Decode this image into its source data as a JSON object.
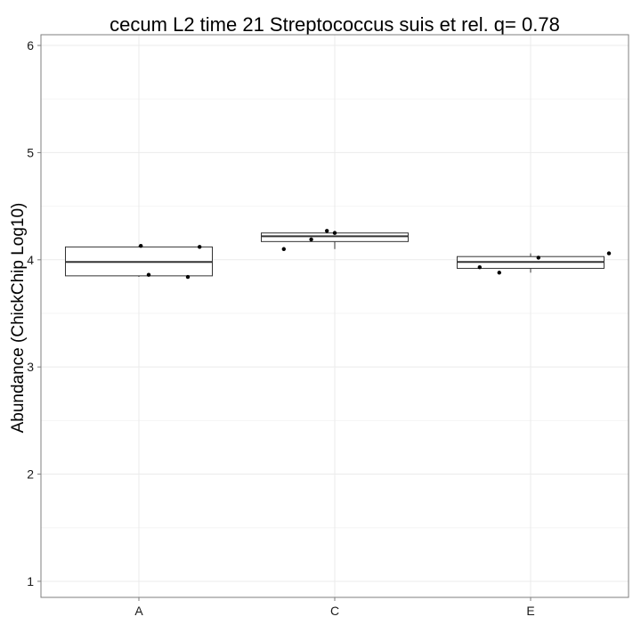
{
  "chart_data": {
    "type": "box",
    "title": "cecum L2 time 21 Streptococcus suis et rel. q= 0.78",
    "xlabel": "",
    "ylabel": "Abundance (ChickChip Log10)",
    "categories": [
      "A",
      "C",
      "E"
    ],
    "ylim": [
      0.85,
      6.1
    ],
    "yticks": [
      1,
      2,
      3,
      4,
      5,
      6
    ],
    "grid": true,
    "legend": "none",
    "boxes": [
      {
        "category": "A",
        "whisker_low": 3.84,
        "q1": 3.85,
        "median": 3.98,
        "q3": 4.12,
        "whisker_high": 4.13
      },
      {
        "category": "C",
        "whisker_low": 4.1,
        "q1": 4.17,
        "median": 4.22,
        "q3": 4.25,
        "whisker_high": 4.27
      },
      {
        "category": "E",
        "whisker_low": 3.88,
        "q1": 3.92,
        "median": 3.98,
        "q3": 4.03,
        "whisker_high": 4.06
      }
    ],
    "points": [
      {
        "category": "A",
        "jitter": 0.01,
        "y": 4.13
      },
      {
        "category": "A",
        "jitter": 0.31,
        "y": 4.12
      },
      {
        "category": "A",
        "jitter": 0.05,
        "y": 3.86
      },
      {
        "category": "A",
        "jitter": 0.25,
        "y": 3.84
      },
      {
        "category": "C",
        "jitter": -0.26,
        "y": 4.1
      },
      {
        "category": "C",
        "jitter": -0.12,
        "y": 4.19
      },
      {
        "category": "C",
        "jitter": -0.04,
        "y": 4.27
      },
      {
        "category": "C",
        "jitter": 0.0,
        "y": 4.25
      },
      {
        "category": "E",
        "jitter": -0.26,
        "y": 3.93
      },
      {
        "category": "E",
        "jitter": -0.16,
        "y": 3.88
      },
      {
        "category": "E",
        "jitter": 0.04,
        "y": 4.02
      },
      {
        "category": "E",
        "jitter": 0.4,
        "y": 4.06
      }
    ],
    "colors": {
      "box_line": "#333333",
      "point": "#000000",
      "grid": "#ebebeb",
      "panel_border": "#7f7f7f"
    }
  }
}
